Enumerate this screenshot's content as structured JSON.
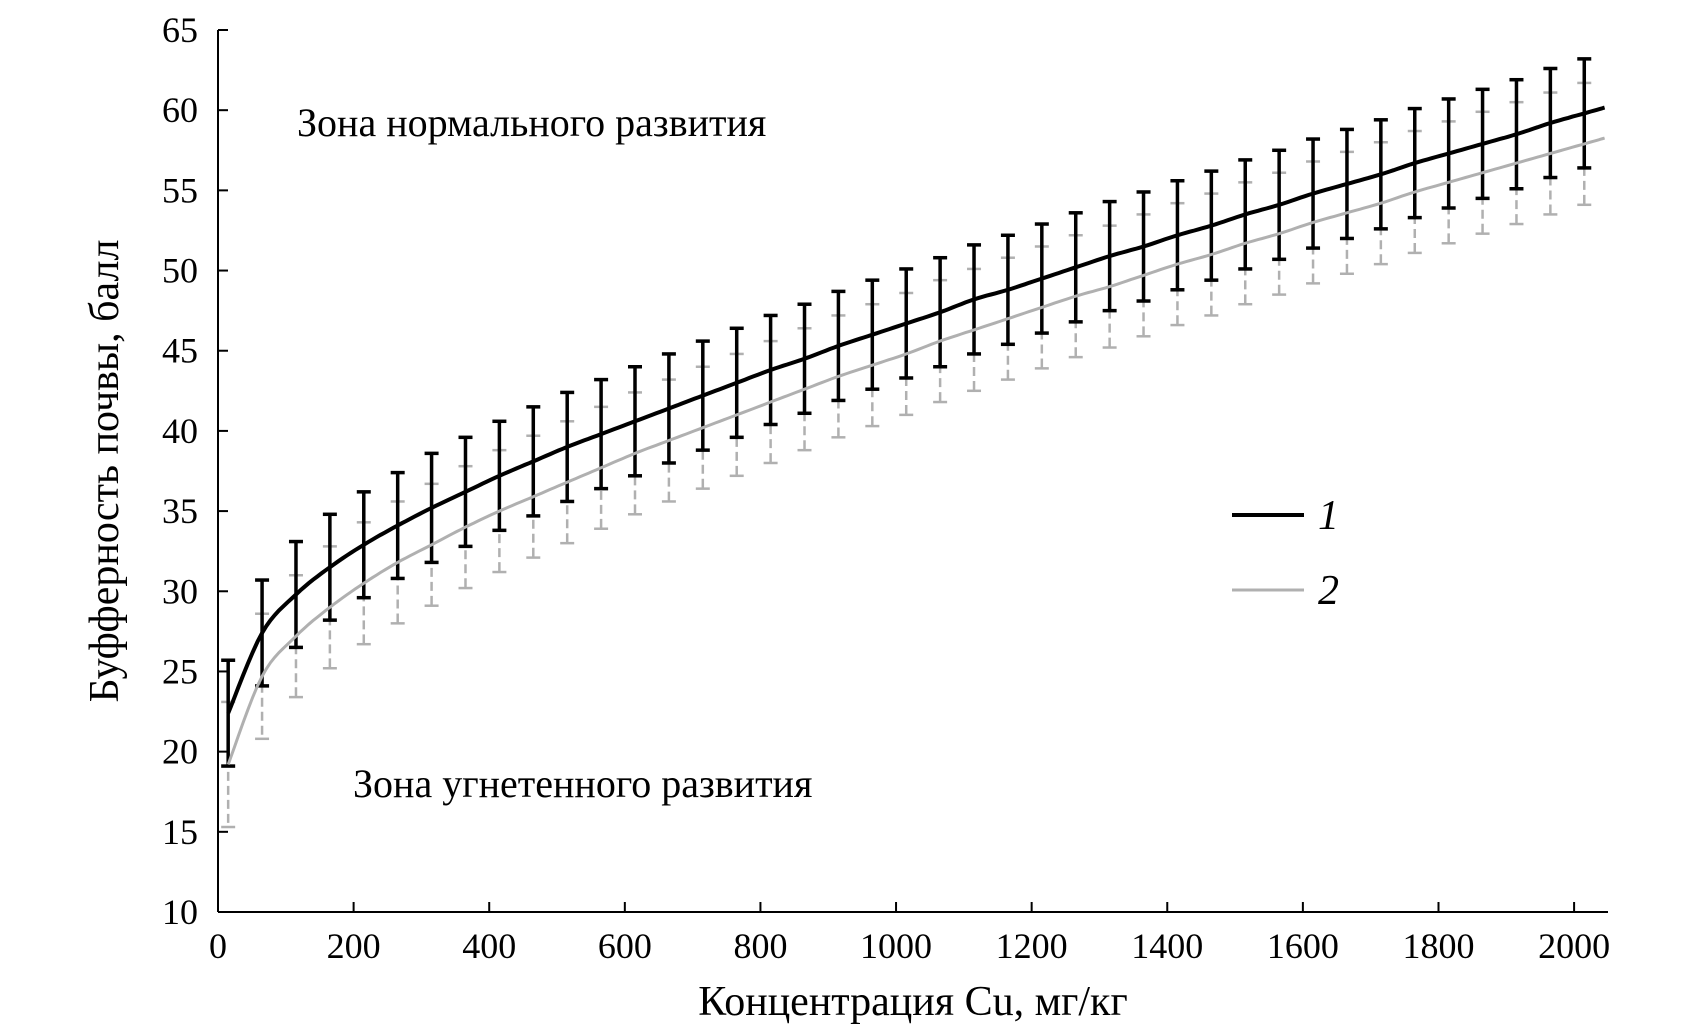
{
  "chart_data": {
    "type": "line",
    "xlabel": "Концентрация Cu, мг/кг",
    "ylabel": "Буфферность почвы, балл",
    "xlim": [
      0,
      2050
    ],
    "ylim": [
      10,
      65
    ],
    "xticks": [
      0,
      200,
      400,
      600,
      800,
      1000,
      1200,
      1400,
      1600,
      1800,
      2000
    ],
    "yticks": [
      10,
      15,
      20,
      25,
      30,
      35,
      40,
      45,
      50,
      55,
      60,
      65
    ],
    "grid": false,
    "legend_position": "center-right",
    "annotations": [
      "Зона нормального развития",
      "Зона угнетенного развития"
    ],
    "error_bars": true,
    "series": [
      {
        "name": "1",
        "color": "#000000",
        "x": [
          15,
          65,
          115,
          165,
          215,
          265,
          315,
          365,
          415,
          465,
          515,
          565,
          615,
          665,
          715,
          765,
          815,
          865,
          915,
          965,
          1015,
          1065,
          1115,
          1165,
          1215,
          1265,
          1315,
          1365,
          1415,
          1465,
          1515,
          1565,
          1615,
          1665,
          1715,
          1765,
          1815,
          1865,
          1915,
          1965,
          2015
        ],
        "values": [
          22.4,
          27.4,
          29.8,
          31.5,
          32.9,
          34.1,
          35.2,
          36.2,
          37.2,
          38.1,
          39.0,
          39.8,
          40.6,
          41.4,
          42.2,
          43.0,
          43.8,
          44.5,
          45.3,
          46.0,
          46.7,
          47.4,
          48.2,
          48.8,
          49.5,
          50.2,
          50.9,
          51.5,
          52.2,
          52.8,
          53.5,
          54.1,
          54.8,
          55.4,
          56.0,
          56.7,
          57.3,
          57.9,
          58.5,
          59.2,
          59.8
        ],
        "error": [
          3.3,
          3.3,
          3.3,
          3.3,
          3.3,
          3.3,
          3.4,
          3.4,
          3.4,
          3.4,
          3.4,
          3.4,
          3.4,
          3.4,
          3.4,
          3.4,
          3.4,
          3.4,
          3.4,
          3.4,
          3.4,
          3.4,
          3.4,
          3.4,
          3.4,
          3.4,
          3.4,
          3.4,
          3.4,
          3.4,
          3.4,
          3.4,
          3.4,
          3.4,
          3.4,
          3.4,
          3.4,
          3.4,
          3.4,
          3.4,
          3.4
        ]
      },
      {
        "name": "2",
        "color": "#b0b0b0",
        "x": [
          15,
          65,
          115,
          165,
          215,
          265,
          315,
          365,
          415,
          465,
          515,
          565,
          615,
          665,
          715,
          765,
          815,
          865,
          915,
          965,
          1015,
          1065,
          1115,
          1165,
          1215,
          1265,
          1315,
          1365,
          1415,
          1465,
          1515,
          1565,
          1615,
          1665,
          1715,
          1765,
          1815,
          1865,
          1915,
          1965,
          2015
        ],
        "values": [
          19.2,
          24.7,
          27.2,
          29.0,
          30.5,
          31.8,
          32.9,
          34.0,
          35.0,
          35.9,
          36.8,
          37.7,
          38.6,
          39.4,
          40.2,
          41.0,
          41.8,
          42.6,
          43.4,
          44.1,
          44.8,
          45.6,
          46.3,
          47.0,
          47.7,
          48.4,
          49.0,
          49.7,
          50.4,
          51.0,
          51.7,
          52.3,
          53.0,
          53.6,
          54.2,
          54.9,
          55.5,
          56.1,
          56.7,
          57.3,
          57.9
        ]
      }
    ],
    "series2_error": [
      3.9,
      3.9,
      3.8,
      3.8,
      3.8,
      3.8,
      3.8,
      3.8,
      3.8,
      3.8,
      3.8,
      3.8,
      3.8,
      3.8,
      3.8,
      3.8,
      3.8,
      3.8,
      3.8,
      3.8,
      3.8,
      3.8,
      3.8,
      3.8,
      3.8,
      3.8,
      3.8,
      3.8,
      3.8,
      3.8,
      3.8,
      3.8,
      3.8,
      3.8,
      3.8,
      3.8,
      3.8,
      3.8,
      3.8,
      3.8,
      3.8
    ]
  }
}
